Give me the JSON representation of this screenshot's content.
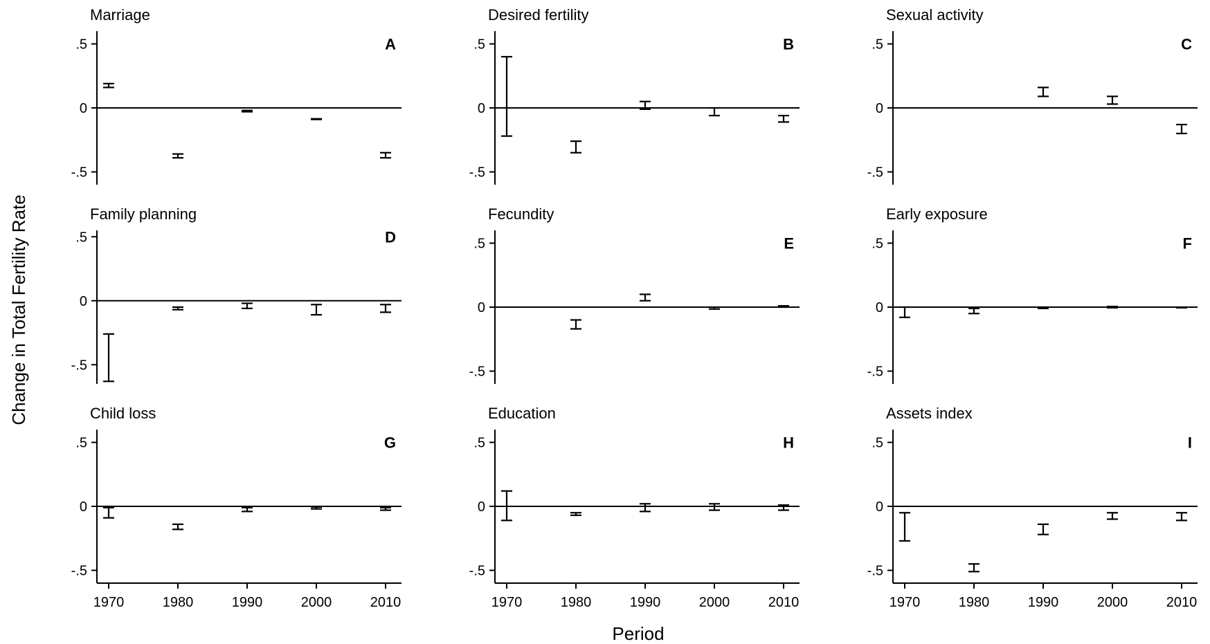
{
  "figure": {
    "y_axis_title": "Change in Total Fertility Rate",
    "x_axis_title": "Period"
  },
  "chart_data": [
    {
      "type": "errorbar",
      "panel": "A",
      "title": "Marriage",
      "x": [
        1970,
        1980,
        1990,
        2000,
        2010
      ],
      "ylim": [
        -0.6,
        0.6
      ],
      "yticks": [
        0.5,
        0,
        -0.5
      ],
      "ytick_labels": [
        ".5",
        "0",
        "-.5"
      ],
      "xticks": [
        1970,
        1980,
        1990,
        2000,
        2010
      ],
      "show_xticks": false,
      "zero_line": true,
      "low": [
        0.16,
        -0.39,
        -0.03,
        -0.09,
        -0.39
      ],
      "high": [
        0.19,
        -0.36,
        -0.02,
        -0.085,
        -0.35
      ]
    },
    {
      "type": "errorbar",
      "panel": "B",
      "title": "Desired fertility",
      "x": [
        1970,
        1980,
        1990,
        2000,
        2010
      ],
      "ylim": [
        -0.6,
        0.6
      ],
      "yticks": [
        0.5,
        0,
        -0.5
      ],
      "ytick_labels": [
        ".5",
        "0",
        "-.5"
      ],
      "xticks": [
        1970,
        1980,
        1990,
        2000,
        2010
      ],
      "show_xticks": false,
      "zero_line": true,
      "low": [
        -0.22,
        -0.35,
        -0.01,
        -0.06,
        -0.11
      ],
      "high": [
        0.4,
        -0.26,
        0.05,
        0.0,
        -0.06
      ]
    },
    {
      "type": "errorbar",
      "panel": "C",
      "title": "Sexual activity",
      "x": [
        1990,
        2000,
        2010
      ],
      "ylim": [
        -0.6,
        0.6
      ],
      "yticks": [
        0.5,
        0,
        -0.5
      ],
      "ytick_labels": [
        ".5",
        "0",
        "-.5"
      ],
      "xticks": [
        1970,
        1980,
        1990,
        2000,
        2010
      ],
      "show_xticks": false,
      "zero_line": true,
      "low": [
        0.09,
        0.03,
        -0.2
      ],
      "high": [
        0.16,
        0.09,
        -0.13
      ]
    },
    {
      "type": "errorbar",
      "panel": "D",
      "title": "Family planning",
      "x": [
        1970,
        1980,
        1990,
        2000,
        2010
      ],
      "ylim": [
        -0.65,
        0.55
      ],
      "yticks": [
        0.5,
        0,
        -0.5
      ],
      "ytick_labels": [
        ".5",
        "0",
        "-.5"
      ],
      "xticks": [
        1970,
        1980,
        1990,
        2000,
        2010
      ],
      "show_xticks": false,
      "zero_line": true,
      "low": [
        -0.63,
        -0.07,
        -0.06,
        -0.11,
        -0.09
      ],
      "high": [
        -0.26,
        -0.05,
        -0.02,
        -0.03,
        -0.03
      ]
    },
    {
      "type": "errorbar",
      "panel": "E",
      "title": "Fecundity",
      "x": [
        1980,
        1990,
        2000,
        2010
      ],
      "ylim": [
        -0.6,
        0.6
      ],
      "yticks": [
        0.5,
        0,
        -0.5
      ],
      "ytick_labels": [
        ".5",
        "0",
        "-.5"
      ],
      "xticks": [
        1970,
        1980,
        1990,
        2000,
        2010
      ],
      "show_xticks": false,
      "zero_line": true,
      "low": [
        -0.17,
        0.05,
        -0.015,
        0.0
      ],
      "high": [
        -0.1,
        0.1,
        0.0,
        0.01
      ]
    },
    {
      "type": "errorbar",
      "panel": "F",
      "title": "Early exposure",
      "x": [
        1970,
        1980,
        1990,
        2000,
        2010
      ],
      "ylim": [
        -0.6,
        0.6
      ],
      "yticks": [
        0.5,
        0,
        -0.5
      ],
      "ytick_labels": [
        ".5",
        "0",
        "-.5"
      ],
      "xticks": [
        1970,
        1980,
        1990,
        2000,
        2010
      ],
      "show_xticks": false,
      "zero_line": true,
      "low": [
        -0.08,
        -0.05,
        -0.01,
        -0.005,
        -0.005
      ],
      "high": [
        0.0,
        -0.01,
        0.0,
        0.005,
        0.0
      ]
    },
    {
      "type": "errorbar",
      "panel": "G",
      "title": "Child loss",
      "x": [
        1970,
        1980,
        1990,
        2000,
        2010
      ],
      "ylim": [
        -0.6,
        0.6
      ],
      "yticks": [
        0.5,
        0,
        -0.5
      ],
      "ytick_labels": [
        ".5",
        "0",
        "-.5"
      ],
      "xticks": [
        1970,
        1980,
        1990,
        2000,
        2010
      ],
      "xtick_labels": [
        "1970",
        "1980",
        "1990",
        "2000",
        "2010"
      ],
      "show_xticks": true,
      "zero_line": true,
      "low": [
        -0.09,
        -0.18,
        -0.04,
        -0.02,
        -0.03
      ],
      "high": [
        -0.01,
        -0.14,
        -0.01,
        -0.005,
        -0.01
      ]
    },
    {
      "type": "errorbar",
      "panel": "H",
      "title": "Education",
      "x": [
        1970,
        1980,
        1990,
        2000,
        2010
      ],
      "ylim": [
        -0.6,
        0.6
      ],
      "yticks": [
        0.5,
        0,
        -0.5
      ],
      "ytick_labels": [
        ".5",
        "0",
        "-.5"
      ],
      "xticks": [
        1970,
        1980,
        1990,
        2000,
        2010
      ],
      "xtick_labels": [
        "1970",
        "1980",
        "1990",
        "2000",
        "2010"
      ],
      "show_xticks": true,
      "zero_line": true,
      "low": [
        -0.11,
        -0.07,
        -0.04,
        -0.03,
        -0.03
      ],
      "high": [
        0.12,
        -0.05,
        0.02,
        0.02,
        0.01
      ]
    },
    {
      "type": "errorbar",
      "panel": "I",
      "title": "Assets index",
      "x": [
        1970,
        1980,
        1990,
        2000,
        2010
      ],
      "ylim": [
        -0.6,
        0.6
      ],
      "yticks": [
        0.5,
        0,
        -0.5
      ],
      "ytick_labels": [
        ".5",
        "0",
        "-.5"
      ],
      "xticks": [
        1970,
        1980,
        1990,
        2000,
        2010
      ],
      "xtick_labels": [
        "1970",
        "1980",
        "1990",
        "2000",
        "2010"
      ],
      "show_xticks": true,
      "zero_line": true,
      "low": [
        -0.27,
        -0.51,
        -0.22,
        -0.1,
        -0.11
      ],
      "high": [
        -0.05,
        -0.45,
        -0.14,
        -0.05,
        -0.05
      ]
    }
  ]
}
